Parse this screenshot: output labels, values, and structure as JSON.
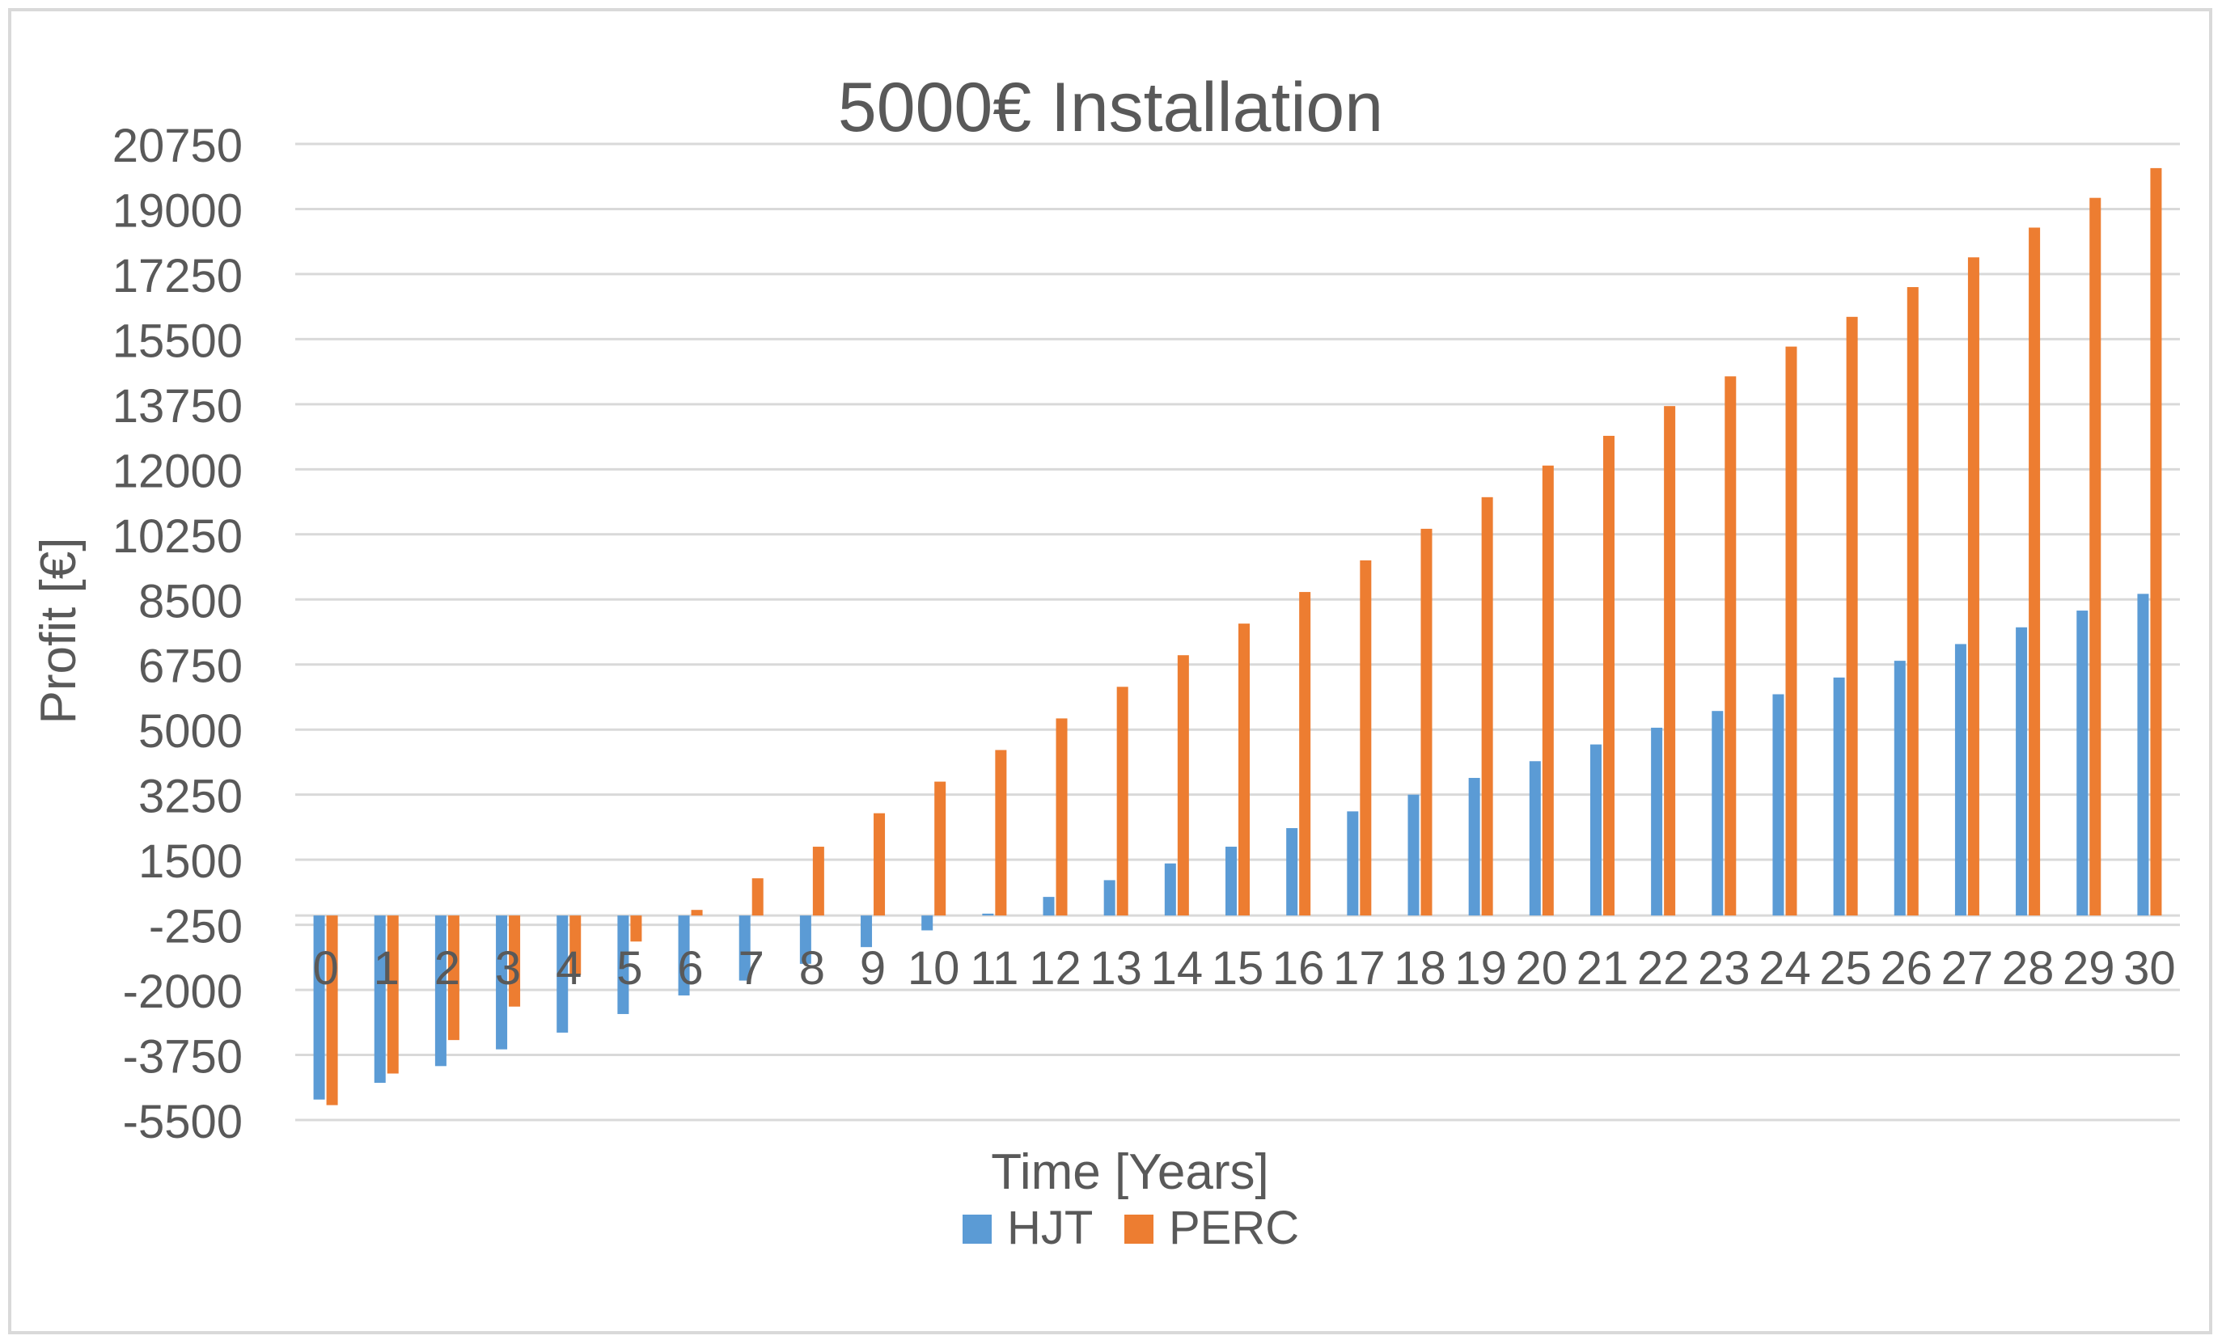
{
  "chart_data": {
    "type": "bar",
    "title": "5000€ Installation",
    "xlabel": "Time [Years]",
    "ylabel": "Profit [€]",
    "ylim": [
      -5500,
      20750
    ],
    "yticks": [
      20750,
      19000,
      17250,
      15500,
      13750,
      12000,
      10250,
      8500,
      6750,
      5000,
      3250,
      1500,
      -250,
      -2000,
      -3750,
      -5500
    ],
    "categories": [
      "0",
      "1",
      "2",
      "3",
      "4",
      "5",
      "6",
      "7",
      "8",
      "9",
      "10",
      "11",
      "12",
      "13",
      "14",
      "15",
      "16",
      "17",
      "18",
      "19",
      "20",
      "21",
      "22",
      "23",
      "24",
      "25",
      "26",
      "27",
      "28",
      "29",
      "30"
    ],
    "series": [
      {
        "name": "HJT",
        "color": "#5b9bd5",
        "values": [
          -4950,
          -4500,
          -4050,
          -3600,
          -3150,
          -2650,
          -2150,
          -1750,
          -1300,
          -850,
          -400,
          50,
          500,
          950,
          1400,
          1850,
          2350,
          2800,
          3250,
          3700,
          4150,
          4600,
          5050,
          5500,
          5950,
          6400,
          6850,
          7300,
          7750,
          8200,
          8650
        ],
        "notes_unused": null
      },
      {
        "name": "PERC",
        "color": "#ed7d31",
        "values": [
          -5100,
          -4250,
          -3350,
          -2450,
          -1600,
          -700,
          150,
          1000,
          1850,
          2750,
          3600,
          4450,
          5300,
          6150,
          7000,
          7850,
          8700,
          9550,
          10400,
          11250,
          12100,
          12900,
          13700,
          14500,
          15300,
          16100,
          16900,
          17700,
          18500,
          19300,
          20100
        ]
      }
    ],
    "legend": "bottom-center",
    "grid": true
  }
}
